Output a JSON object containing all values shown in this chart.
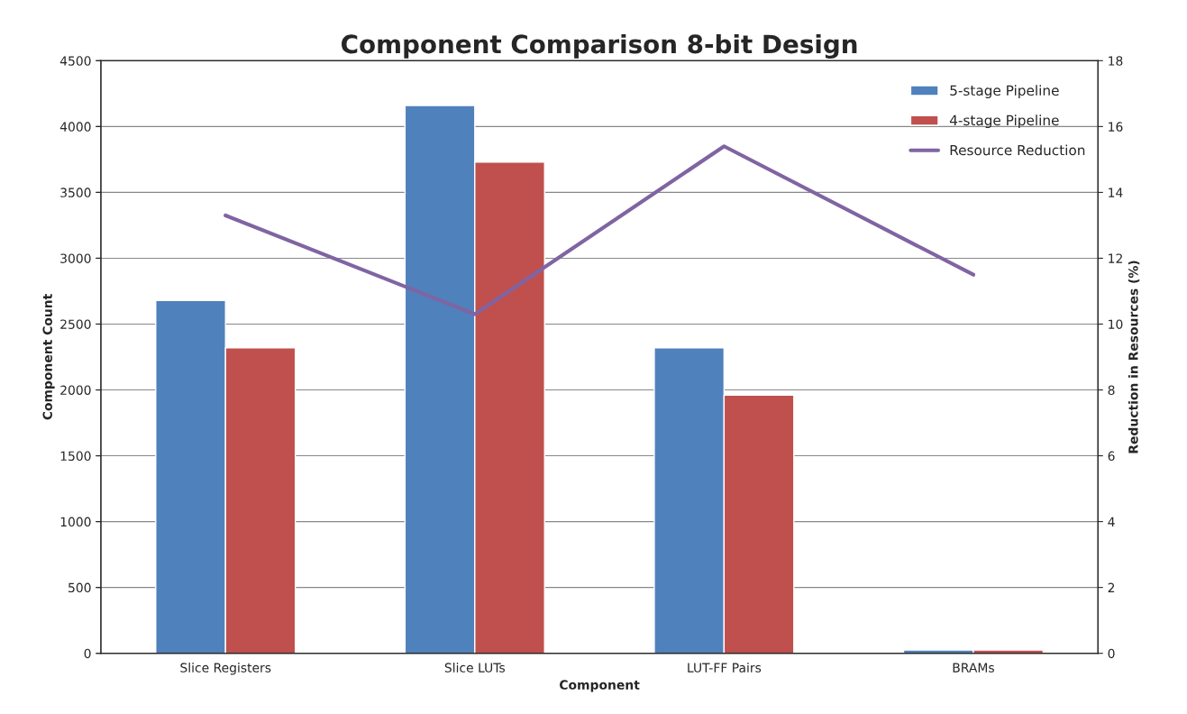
{
  "chart_data": {
    "type": "bar",
    "title": "Component Comparison 8-bit Design",
    "xlabel": "Component",
    "ylabel": "Component Count",
    "y2label": "Reduction in Resources (%)",
    "categories": [
      "Slice Registers",
      "Slice LUTs",
      "LUT-FF Pairs",
      "BRAMs"
    ],
    "series": [
      {
        "name": "5-stage Pipeline",
        "color": "#4f81bd",
        "values": [
          2680,
          4160,
          2320,
          25
        ]
      },
      {
        "name": "4-stage Pipeline",
        "color": "#c0504d",
        "values": [
          2320,
          3730,
          1960,
          25
        ]
      },
      {
        "name": "Resource Reduction",
        "type": "line",
        "axis": "y2",
        "color": "#8064a2",
        "values": [
          13.3,
          10.3,
          15.4,
          11.5
        ]
      }
    ],
    "ylim": [
      0,
      4500
    ],
    "yticks": [
      0,
      500,
      1000,
      1500,
      2000,
      2500,
      3000,
      3500,
      4000,
      4500
    ],
    "y2lim": [
      0,
      18
    ],
    "y2ticks": [
      0,
      2,
      4,
      6,
      8,
      10,
      12,
      14,
      16,
      18
    ],
    "grid": "y",
    "legend": "top right",
    "marker": "none"
  }
}
